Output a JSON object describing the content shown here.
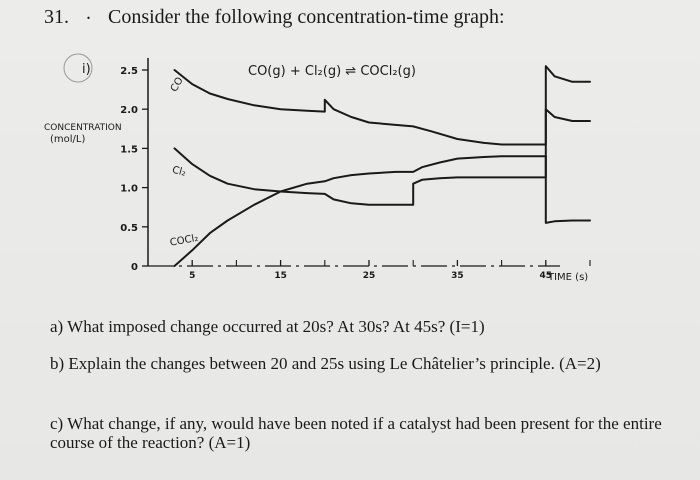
{
  "question": {
    "number": "31.",
    "prompt": "Consider the following concentration-time graph:"
  },
  "graph": {
    "marker": "i)",
    "equation": "CO(g) + Cl₂(g) ⇌ COCl₂(g)",
    "y_axis_label_line1": "CONCENTRATION",
    "y_axis_label_line2": "(mol/L)",
    "x_axis_label": "TIME (s)",
    "y_ticks": [
      "2.5",
      "2.0",
      "1.5",
      "1.0",
      "0.5",
      "0"
    ],
    "x_ticks": [
      "5",
      "15",
      "25",
      "35",
      "45"
    ],
    "curve_labels": {
      "co": "CO",
      "cl2": "Cl₂",
      "cocl2": "COCl₂"
    }
  },
  "chart_data": {
    "type": "line",
    "title": "CO(g) + Cl₂(g) ⇌ COCl₂(g)",
    "xlabel": "TIME (s)",
    "ylabel": "CONCENTRATION (mol/L)",
    "ylim": [
      0,
      2.5
    ],
    "xlim": [
      0,
      50
    ],
    "series": [
      {
        "name": "CO",
        "x": [
          3,
          5,
          7,
          9,
          12,
          15,
          18,
          20,
          20,
          21,
          23,
          25,
          28,
          30,
          32,
          35,
          38,
          40,
          42,
          45,
          45,
          46,
          48,
          50
        ],
        "y": [
          2.5,
          2.32,
          2.2,
          2.13,
          2.05,
          2.0,
          1.98,
          1.97,
          2.12,
          2.0,
          1.9,
          1.83,
          1.8,
          1.78,
          1.72,
          1.62,
          1.57,
          1.55,
          1.55,
          1.55,
          2.55,
          2.42,
          2.35,
          2.35
        ]
      },
      {
        "name": "Cl₂",
        "x": [
          3,
          5,
          7,
          9,
          12,
          15,
          18,
          20,
          21,
          23,
          25,
          28,
          30,
          30,
          31,
          33,
          35,
          38,
          40,
          42,
          45,
          45,
          46,
          48,
          50
        ],
        "y": [
          1.5,
          1.3,
          1.15,
          1.05,
          0.98,
          0.95,
          0.93,
          0.92,
          0.85,
          0.8,
          0.78,
          0.78,
          0.78,
          1.05,
          1.1,
          1.12,
          1.13,
          1.13,
          1.13,
          1.13,
          1.13,
          2.0,
          1.9,
          1.85,
          1.85
        ]
      },
      {
        "name": "COCl₂",
        "x": [
          3,
          5,
          7,
          9,
          12,
          15,
          18,
          20,
          21,
          23,
          25,
          28,
          30,
          31,
          33,
          35,
          38,
          40,
          42,
          45,
          45,
          46,
          48,
          50
        ],
        "y": [
          0.0,
          0.2,
          0.42,
          0.58,
          0.78,
          0.95,
          1.05,
          1.08,
          1.12,
          1.16,
          1.18,
          1.2,
          1.2,
          1.26,
          1.32,
          1.37,
          1.39,
          1.4,
          1.4,
          1.4,
          0.55,
          0.57,
          0.58,
          0.58
        ]
      }
    ]
  },
  "parts": {
    "a": "a) What imposed change occurred at 20s? At 30s? At 45s? (I=1)",
    "b": "b) Explain the changes between 20 and 25s using Le Châtelier’s principle. (A=2)",
    "c": "c) What change, if any, would have been noted if a catalyst had been present for the entire course of the reaction? (A=1)"
  }
}
